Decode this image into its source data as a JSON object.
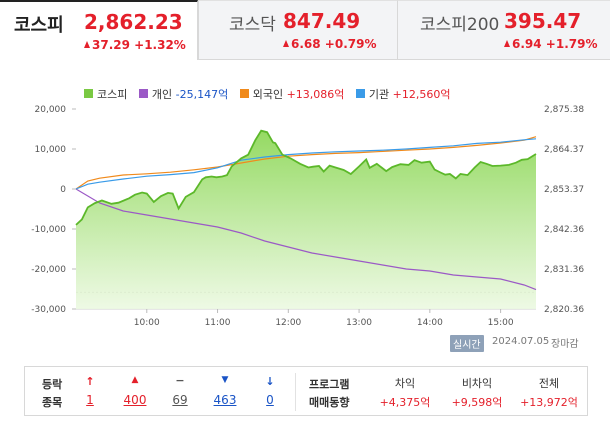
{
  "tabs": [
    {
      "name": "코스피",
      "value": "2,862.23",
      "change": "37.29 +1.32%",
      "active": true
    },
    {
      "name": "코스닥",
      "value": "847.49",
      "change": "6.68 +0.79%",
      "active": false
    },
    {
      "name": "코스피200",
      "value": "395.47",
      "change": "6.94 +1.79%",
      "active": false
    }
  ],
  "legend": {
    "kospi": {
      "name": "코스피",
      "color": "#7ac943"
    },
    "individual": {
      "name": "개인",
      "value": "-25,147억",
      "color": "#9b59c6"
    },
    "foreign": {
      "name": "외국인",
      "value": "+13,086억",
      "color": "#f08a1c"
    },
    "institution": {
      "name": "기관",
      "value": "+12,560억",
      "color": "#3a9be8"
    }
  },
  "chart_data": {
    "type": "line",
    "x_ticks": [
      "10:00",
      "11:00",
      "12:00",
      "13:00",
      "14:00",
      "15:00"
    ],
    "y_left_ticks": [
      "20,000",
      "10,000",
      "0",
      "-10,000",
      "-20,000",
      "-30,000"
    ],
    "y_left_range": [
      -30000,
      20000
    ],
    "y_right_ticks": [
      "2,875.38",
      "2,864.37",
      "2,853.37",
      "2,842.36",
      "2,831.36",
      "2,820.36"
    ],
    "y_right_range": [
      2820.36,
      2875.38
    ],
    "x_range_minutes": [
      540,
      930
    ],
    "baseline_right": 2824.94,
    "series": [
      {
        "name": "코스피",
        "axis": "right",
        "x": [
          540,
          545,
          550,
          556,
          562,
          570,
          576,
          585,
          590,
          596,
          600,
          606,
          612,
          618,
          622,
          627,
          633,
          640,
          647,
          650,
          655,
          659,
          664,
          668,
          672,
          680,
          686,
          692,
          697,
          702,
          707,
          709,
          715,
          722,
          730,
          737,
          741,
          746,
          750,
          755,
          760,
          767,
          773,
          780,
          786,
          789,
          795,
          803,
          808,
          815,
          822,
          827,
          833,
          840,
          844,
          849,
          853,
          857,
          862,
          866,
          872,
          878,
          883,
          888,
          893,
          900,
          907,
          913,
          918,
          923,
          930
        ],
        "y": [
          2843.5,
          2845.0,
          2848.3,
          2849.5,
          2850.2,
          2849.3,
          2849.6,
          2850.8,
          2851.8,
          2852.4,
          2852.1,
          2849.8,
          2851.4,
          2852.3,
          2852.1,
          2848.0,
          2851.2,
          2852.5,
          2856.0,
          2856.6,
          2856.8,
          2856.6,
          2856.8,
          2857.2,
          2859.6,
          2861.8,
          2862.8,
          2866.8,
          2869.4,
          2869.0,
          2866.2,
          2866.0,
          2862.8,
          2861.8,
          2860.3,
          2859.3,
          2859.5,
          2859.7,
          2858.2,
          2859.8,
          2859.3,
          2858.6,
          2857.5,
          2859.6,
          2861.5,
          2859.2,
          2860.3,
          2858.3,
          2859.4,
          2860.2,
          2860.0,
          2861.3,
          2860.6,
          2860.9,
          2858.7,
          2857.9,
          2857.3,
          2857.5,
          2856.3,
          2857.5,
          2857.2,
          2859.3,
          2860.8,
          2860.3,
          2859.7,
          2859.8,
          2860.0,
          2860.6,
          2861.4,
          2861.6,
          2863.0
        ]
      },
      {
        "name": "개인",
        "axis": "left",
        "x": [
          540,
          560,
          580,
          600,
          620,
          640,
          660,
          680,
          700,
          720,
          740,
          760,
          780,
          800,
          820,
          840,
          860,
          880,
          900,
          920,
          930
        ],
        "y": [
          0,
          -3500,
          -5500,
          -6500,
          -7500,
          -8500,
          -9500,
          -11000,
          -13000,
          -14500,
          -16000,
          -17000,
          -18000,
          -19000,
          -20000,
          -20500,
          -21500,
          -22000,
          -22500,
          -24000,
          -25147
        ]
      },
      {
        "name": "외국인",
        "axis": "left",
        "x": [
          540,
          550,
          560,
          580,
          600,
          620,
          640,
          660,
          680,
          700,
          720,
          740,
          760,
          780,
          800,
          820,
          840,
          860,
          880,
          900,
          920,
          930
        ],
        "y": [
          0,
          2000,
          2700,
          3500,
          3800,
          4200,
          4800,
          5500,
          6500,
          7500,
          8200,
          8600,
          8900,
          9100,
          9400,
          9700,
          10000,
          10400,
          10900,
          11500,
          12200,
          13086
        ]
      },
      {
        "name": "기관",
        "axis": "left",
        "x": [
          540,
          550,
          560,
          580,
          600,
          620,
          640,
          660,
          680,
          700,
          720,
          740,
          760,
          780,
          800,
          820,
          840,
          860,
          880,
          900,
          920,
          930
        ],
        "y": [
          0,
          1200,
          1700,
          2500,
          3200,
          3600,
          4100,
          5300,
          7200,
          8000,
          8600,
          9000,
          9300,
          9500,
          9700,
          10000,
          10400,
          10800,
          11400,
          11700,
          12300,
          12560
        ]
      }
    ]
  },
  "meta": {
    "badge": "실시간",
    "date": "2024.07.05",
    "status": "장마감"
  },
  "bottom": {
    "labels": [
      "등락",
      "종목"
    ],
    "counts": [
      {
        "symbol": "↑",
        "value": "1",
        "color": "#e4202b"
      },
      {
        "symbol": "▲",
        "value": "400",
        "color": "#e4202b"
      },
      {
        "symbol": "−",
        "value": "69",
        "color": "#555555"
      },
      {
        "symbol": "▼",
        "value": "463",
        "color": "#1a54c6"
      },
      {
        "symbol": "↓",
        "value": "0",
        "color": "#1a54c6"
      }
    ],
    "program_labels": [
      "프로그램",
      "매매동향"
    ],
    "program": [
      {
        "header": "차익",
        "value": "+4,375억"
      },
      {
        "header": "비차익",
        "value": "+9,598억"
      },
      {
        "header": "전체",
        "value": "+13,972억"
      }
    ]
  }
}
